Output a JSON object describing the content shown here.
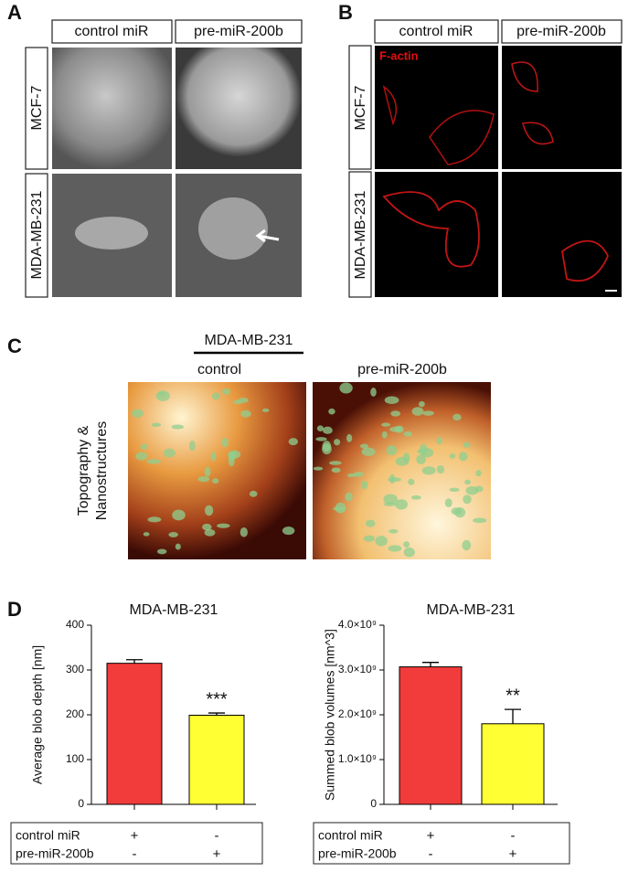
{
  "panel_a": {
    "label": "A",
    "columns": [
      "control miR",
      "pre-miR-200b"
    ],
    "rows": [
      "MCF-7",
      "MDA-MB-231"
    ]
  },
  "panel_b": {
    "label": "B",
    "columns": [
      "control miR",
      "pre-miR-200b"
    ],
    "rows": [
      "MCF-7",
      "MDA-MB-231"
    ],
    "stain": "F-actin"
  },
  "panel_c": {
    "label": "C",
    "cell_line": "MDA-MB-231",
    "columns": [
      "control",
      "pre-miR-200b"
    ],
    "row_label": [
      "Topography &",
      "Nanostructures"
    ]
  },
  "panel_d": {
    "label": "D"
  },
  "chart_data": [
    {
      "type": "bar",
      "title": "MDA-MB-231",
      "y_label": "Average blob depth [nm]",
      "values": [
        315,
        199
      ],
      "errors": [
        8,
        5
      ],
      "annotations": [
        null,
        "***"
      ],
      "colors": [
        "#f23b3b",
        "#ffff33"
      ],
      "ylim": [
        0,
        400
      ],
      "yticks": [
        0,
        100,
        200,
        300,
        400
      ],
      "conditions": [
        {
          "name": "control miR",
          "signs": [
            "+",
            "-"
          ]
        },
        {
          "name": "pre-miR-200b",
          "signs": [
            "-",
            "+"
          ]
        }
      ]
    },
    {
      "type": "bar",
      "title": "MDA-MB-231",
      "y_label": "Summed blob volumes [nm^3]",
      "values": [
        3070000000,
        1800000000
      ],
      "errors": [
        100000000,
        320000000
      ],
      "annotations": [
        null,
        "**"
      ],
      "colors": [
        "#f23b3b",
        "#ffff33"
      ],
      "ylim": [
        0,
        4000000000
      ],
      "yticks": [
        0,
        {
          "value": 1000000000,
          "label": "1.0×10⁹"
        },
        {
          "value": 2000000000,
          "label": "2.0×10⁹"
        },
        {
          "value": 3000000000,
          "label": "3.0×10⁹"
        },
        {
          "value": 4000000000,
          "label": "4.0×10⁹"
        }
      ],
      "conditions": [
        {
          "name": "control miR",
          "signs": [
            "+",
            "-"
          ]
        },
        {
          "name": "pre-miR-200b",
          "signs": [
            "-",
            "+"
          ]
        }
      ]
    }
  ]
}
